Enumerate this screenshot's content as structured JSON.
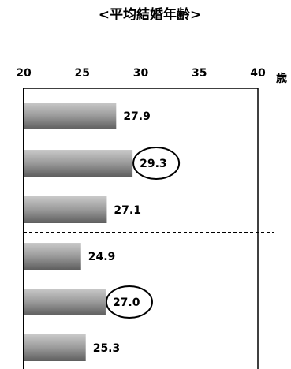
{
  "chart_data": {
    "type": "bar",
    "orientation": "horizontal",
    "title": "<平均結婚年齢>",
    "xunit": "歳",
    "xlim": [
      20,
      40
    ],
    "xticks": [
      "20",
      "25",
      "30",
      "35",
      "40"
    ],
    "values": [
      27.9,
      29.3,
      27.1,
      24.9,
      27.0,
      25.3
    ],
    "value_labels": [
      "27.9",
      "29.3",
      "27.1",
      "24.9",
      "27.0",
      "25.3"
    ],
    "highlighted": [
      false,
      true,
      false,
      false,
      true,
      false
    ],
    "group_divider_after_index": 2,
    "bar_color": "#9a9a9a",
    "grid": false,
    "legend": "none"
  }
}
